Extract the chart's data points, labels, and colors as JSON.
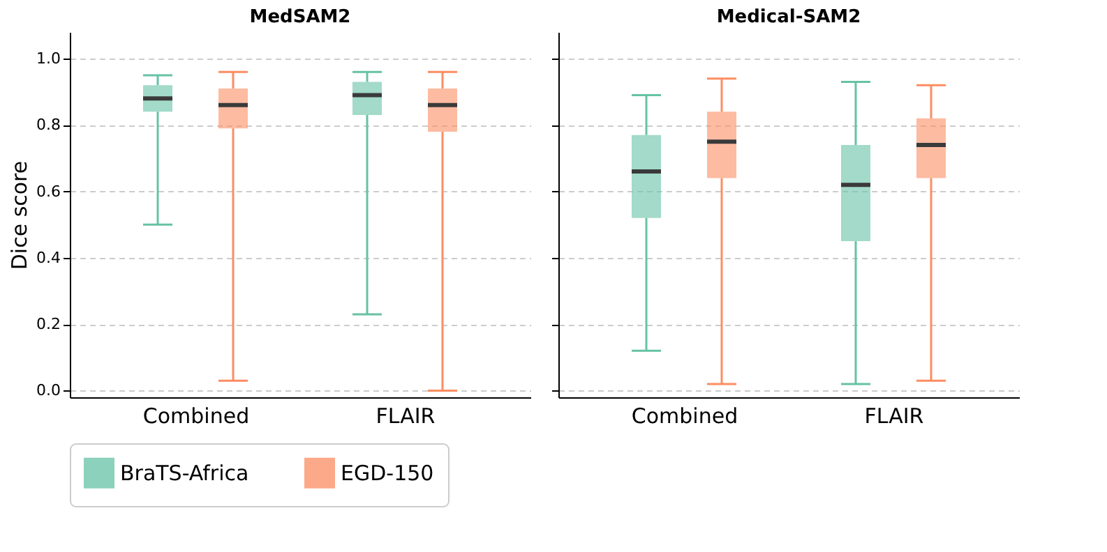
{
  "chart_data": [
    {
      "type": "box",
      "title": "MedSAM2",
      "ylabel": "Dice score",
      "categories": [
        "Combined",
        "FLAIR"
      ],
      "ylim": [
        -0.02,
        1.08
      ],
      "yticks": [
        {
          "value": 0,
          "label": "0.0"
        },
        {
          "value": 0.2,
          "label": "0.2"
        },
        {
          "value": 0.4,
          "label": "0.4"
        },
        {
          "value": 0.6,
          "label": "0.6"
        },
        {
          "value": 0.8,
          "label": "0.8"
        },
        {
          "value": 1,
          "label": "1.0"
        }
      ],
      "grid": "y",
      "legend": "bottom",
      "series": [
        {
          "name": "BraTS-Africa",
          "color": "#66c2a5",
          "boxes": [
            {
              "low": 0.5,
              "q1": 0.84,
              "median": 0.88,
              "q3": 0.92,
              "high": 0.95
            },
            {
              "low": 0.23,
              "q1": 0.83,
              "median": 0.89,
              "q3": 0.93,
              "high": 0.96
            }
          ]
        },
        {
          "name": "EGD-150",
          "color": "#fc8d62",
          "boxes": [
            {
              "low": 0.03,
              "q1": 0.79,
              "median": 0.86,
              "q3": 0.91,
              "high": 0.96
            },
            {
              "low": 0.0,
              "q1": 0.78,
              "median": 0.86,
              "q3": 0.91,
              "high": 0.96
            }
          ]
        }
      ]
    },
    {
      "type": "box",
      "title": "Medical-SAM2",
      "categories": [
        "Combined",
        "FLAIR"
      ],
      "ylim": [
        -0.02,
        1.08
      ],
      "yticks": [
        0,
        0.2,
        0.4,
        0.6,
        0.8,
        1
      ],
      "grid": "y",
      "legend": "bottom",
      "tick_labels": "x",
      "series": [
        {
          "name": "BraTS-Africa",
          "color": "#66c2a5",
          "boxes": [
            {
              "low": 0.12,
              "q1": 0.52,
              "median": 0.66,
              "q3": 0.77,
              "high": 0.89
            },
            {
              "low": 0.02,
              "q1": 0.45,
              "median": 0.62,
              "q3": 0.74,
              "high": 0.93
            }
          ]
        },
        {
          "name": "EGD-150",
          "color": "#fc8d62",
          "boxes": [
            {
              "low": 0.02,
              "q1": 0.64,
              "median": 0.75,
              "q3": 0.84,
              "high": 0.94
            },
            {
              "low": 0.03,
              "q1": 0.64,
              "median": 0.74,
              "q3": 0.82,
              "high": 0.92
            }
          ]
        }
      ]
    }
  ]
}
